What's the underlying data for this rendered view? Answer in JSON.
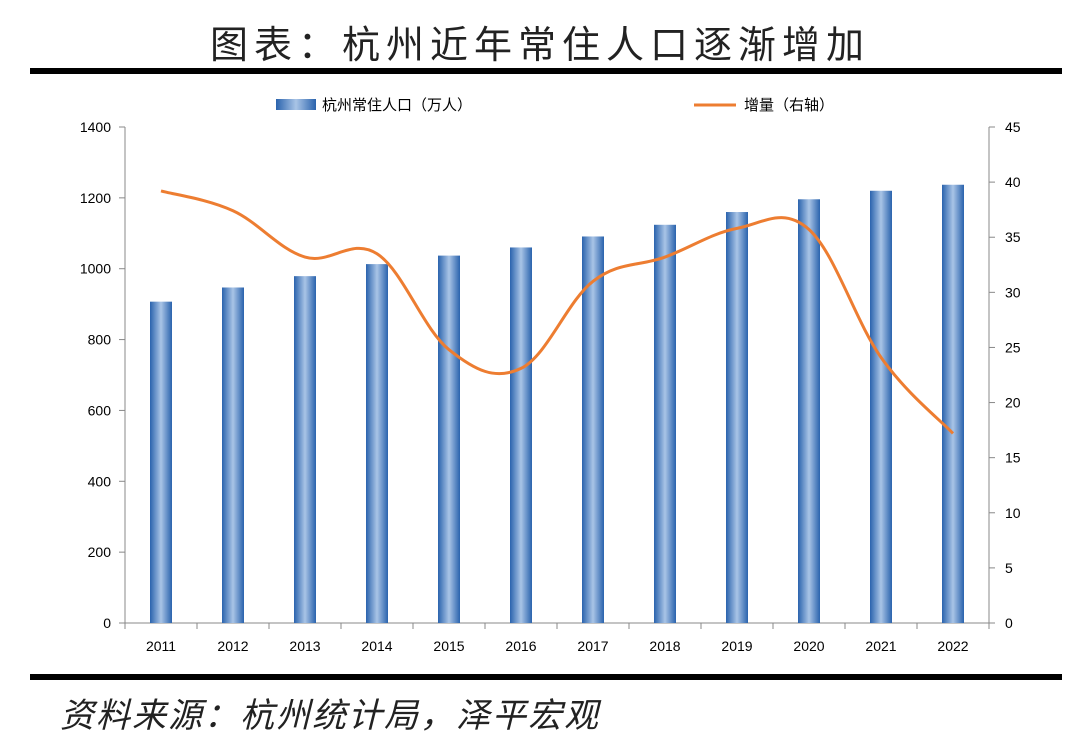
{
  "title": "图表：杭州近年常住人口逐渐增加",
  "source": "资料来源：杭州统计局，泽平宏观",
  "colors": {
    "bar": "#2e6db4",
    "line": "#ed7d31"
  },
  "chart_data": {
    "type": "bar+line",
    "categories": [
      "2011",
      "2012",
      "2013",
      "2014",
      "2015",
      "2016",
      "2017",
      "2018",
      "2019",
      "2020",
      "2021",
      "2022"
    ],
    "series": [
      {
        "name": "杭州常住人口（万人）",
        "type": "bar",
        "axis": "left",
        "values": [
          907,
          947,
          979,
          1013,
          1037,
          1060,
          1091,
          1124,
          1160,
          1196,
          1220,
          1237
        ]
      },
      {
        "name": "增量（右轴）",
        "type": "line",
        "axis": "right",
        "values": [
          39.2,
          37.4,
          33.2,
          33.5,
          24.8,
          23.1,
          31.0,
          33.2,
          35.8,
          35.7,
          24.1,
          17.2
        ]
      }
    ],
    "yleft": {
      "min": 0,
      "max": 1400,
      "ticks": [
        "0",
        "200",
        "400",
        "600",
        "800",
        "1000",
        "1200",
        "1400"
      ]
    },
    "yright": {
      "min": 0,
      "max": 45,
      "ticks": [
        "0",
        "5",
        "10",
        "15",
        "20",
        "25",
        "30",
        "35",
        "40",
        "45"
      ]
    },
    "legend_position": "top"
  }
}
